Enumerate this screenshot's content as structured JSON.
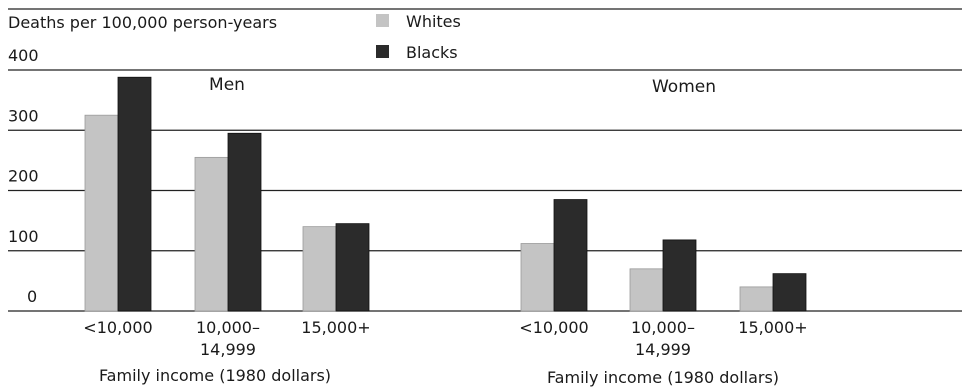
{
  "chart_data": {
    "type": "bar",
    "ylabel": "Deaths per 100,000 person-years",
    "ylim": [
      0,
      400
    ],
    "yticks": [
      0,
      100,
      200,
      300,
      400
    ],
    "grid": true,
    "legend": {
      "placement": "top-center",
      "items": [
        {
          "label": "Whites",
          "color": "#c4c4c4"
        },
        {
          "label": "Blacks",
          "color": "#2b2b2b"
        }
      ]
    },
    "panels": [
      {
        "title": "Men",
        "xlabel": "Family income (1980 dollars)",
        "categories": [
          [
            "<10,000"
          ],
          [
            "10,000–",
            "14,999"
          ],
          [
            "15,000+"
          ]
        ],
        "series": [
          {
            "name": "Whites",
            "values": [
              325,
              255,
              140
            ]
          },
          {
            "name": "Blacks",
            "values": [
              388,
              295,
              145
            ]
          }
        ]
      },
      {
        "title": "Women",
        "xlabel": "Family income (1980 dollars)",
        "categories": [
          [
            "<10,000"
          ],
          [
            "10,000–",
            "14,999"
          ],
          [
            "15,000+"
          ]
        ],
        "series": [
          {
            "name": "Whites",
            "values": [
              112,
              70,
              40
            ]
          },
          {
            "name": "Blacks",
            "values": [
              185,
              118,
              62
            ]
          }
        ]
      }
    ]
  }
}
